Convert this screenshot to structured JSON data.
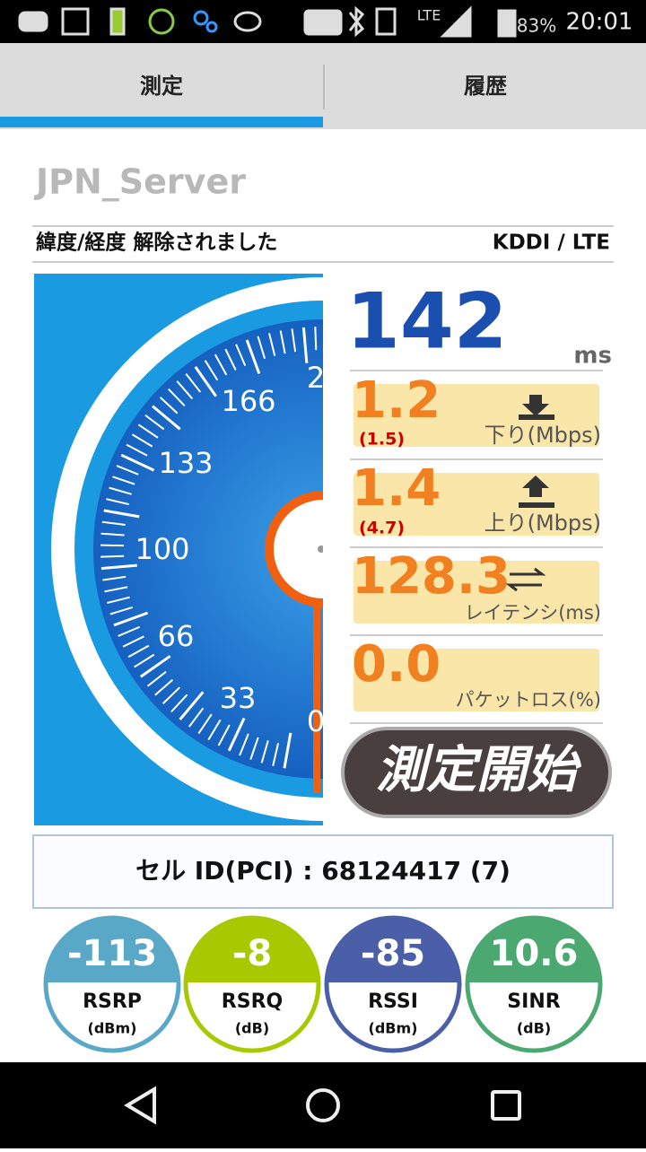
{
  "status": {
    "network": "LTE",
    "battery": "83%",
    "time": "20:01"
  },
  "tabs": [
    "測定",
    "履歴"
  ],
  "server": "JPN_Server",
  "location": "緯度/経度 解除されました",
  "carrier": "KDDI / LTE",
  "gauge_labels": [
    "0",
    "33",
    "66",
    "100",
    "133",
    "166",
    "2"
  ],
  "ping": {
    "value": "142",
    "unit": "ms"
  },
  "download": {
    "value": "1.2",
    "sub": "(1.5)",
    "label": "下り(Mbps)"
  },
  "upload": {
    "value": "1.4",
    "sub": "(4.7)",
    "label": "上り(Mbps)"
  },
  "latency": {
    "value": "128.3",
    "label": "レイテンシ(ms)"
  },
  "packet_loss": {
    "value": "0.0",
    "label": "パケットロス(%)"
  },
  "button": "測定開始",
  "cell": "セル ID(PCI) : 68124417 (7)",
  "metrics": [
    {
      "value": "-113",
      "name": "RSRP",
      "unit": "(dBm)",
      "color": "#5aa8c8"
    },
    {
      "value": "-8",
      "name": "RSRQ",
      "unit": "(dB)",
      "color": "#a8c800"
    },
    {
      "value": "-85",
      "name": "RSSI",
      "unit": "(dBm)",
      "color": "#4a5fa8"
    },
    {
      "value": "10.6",
      "name": "SINR",
      "unit": "(dB)",
      "color": "#4aa870"
    }
  ]
}
